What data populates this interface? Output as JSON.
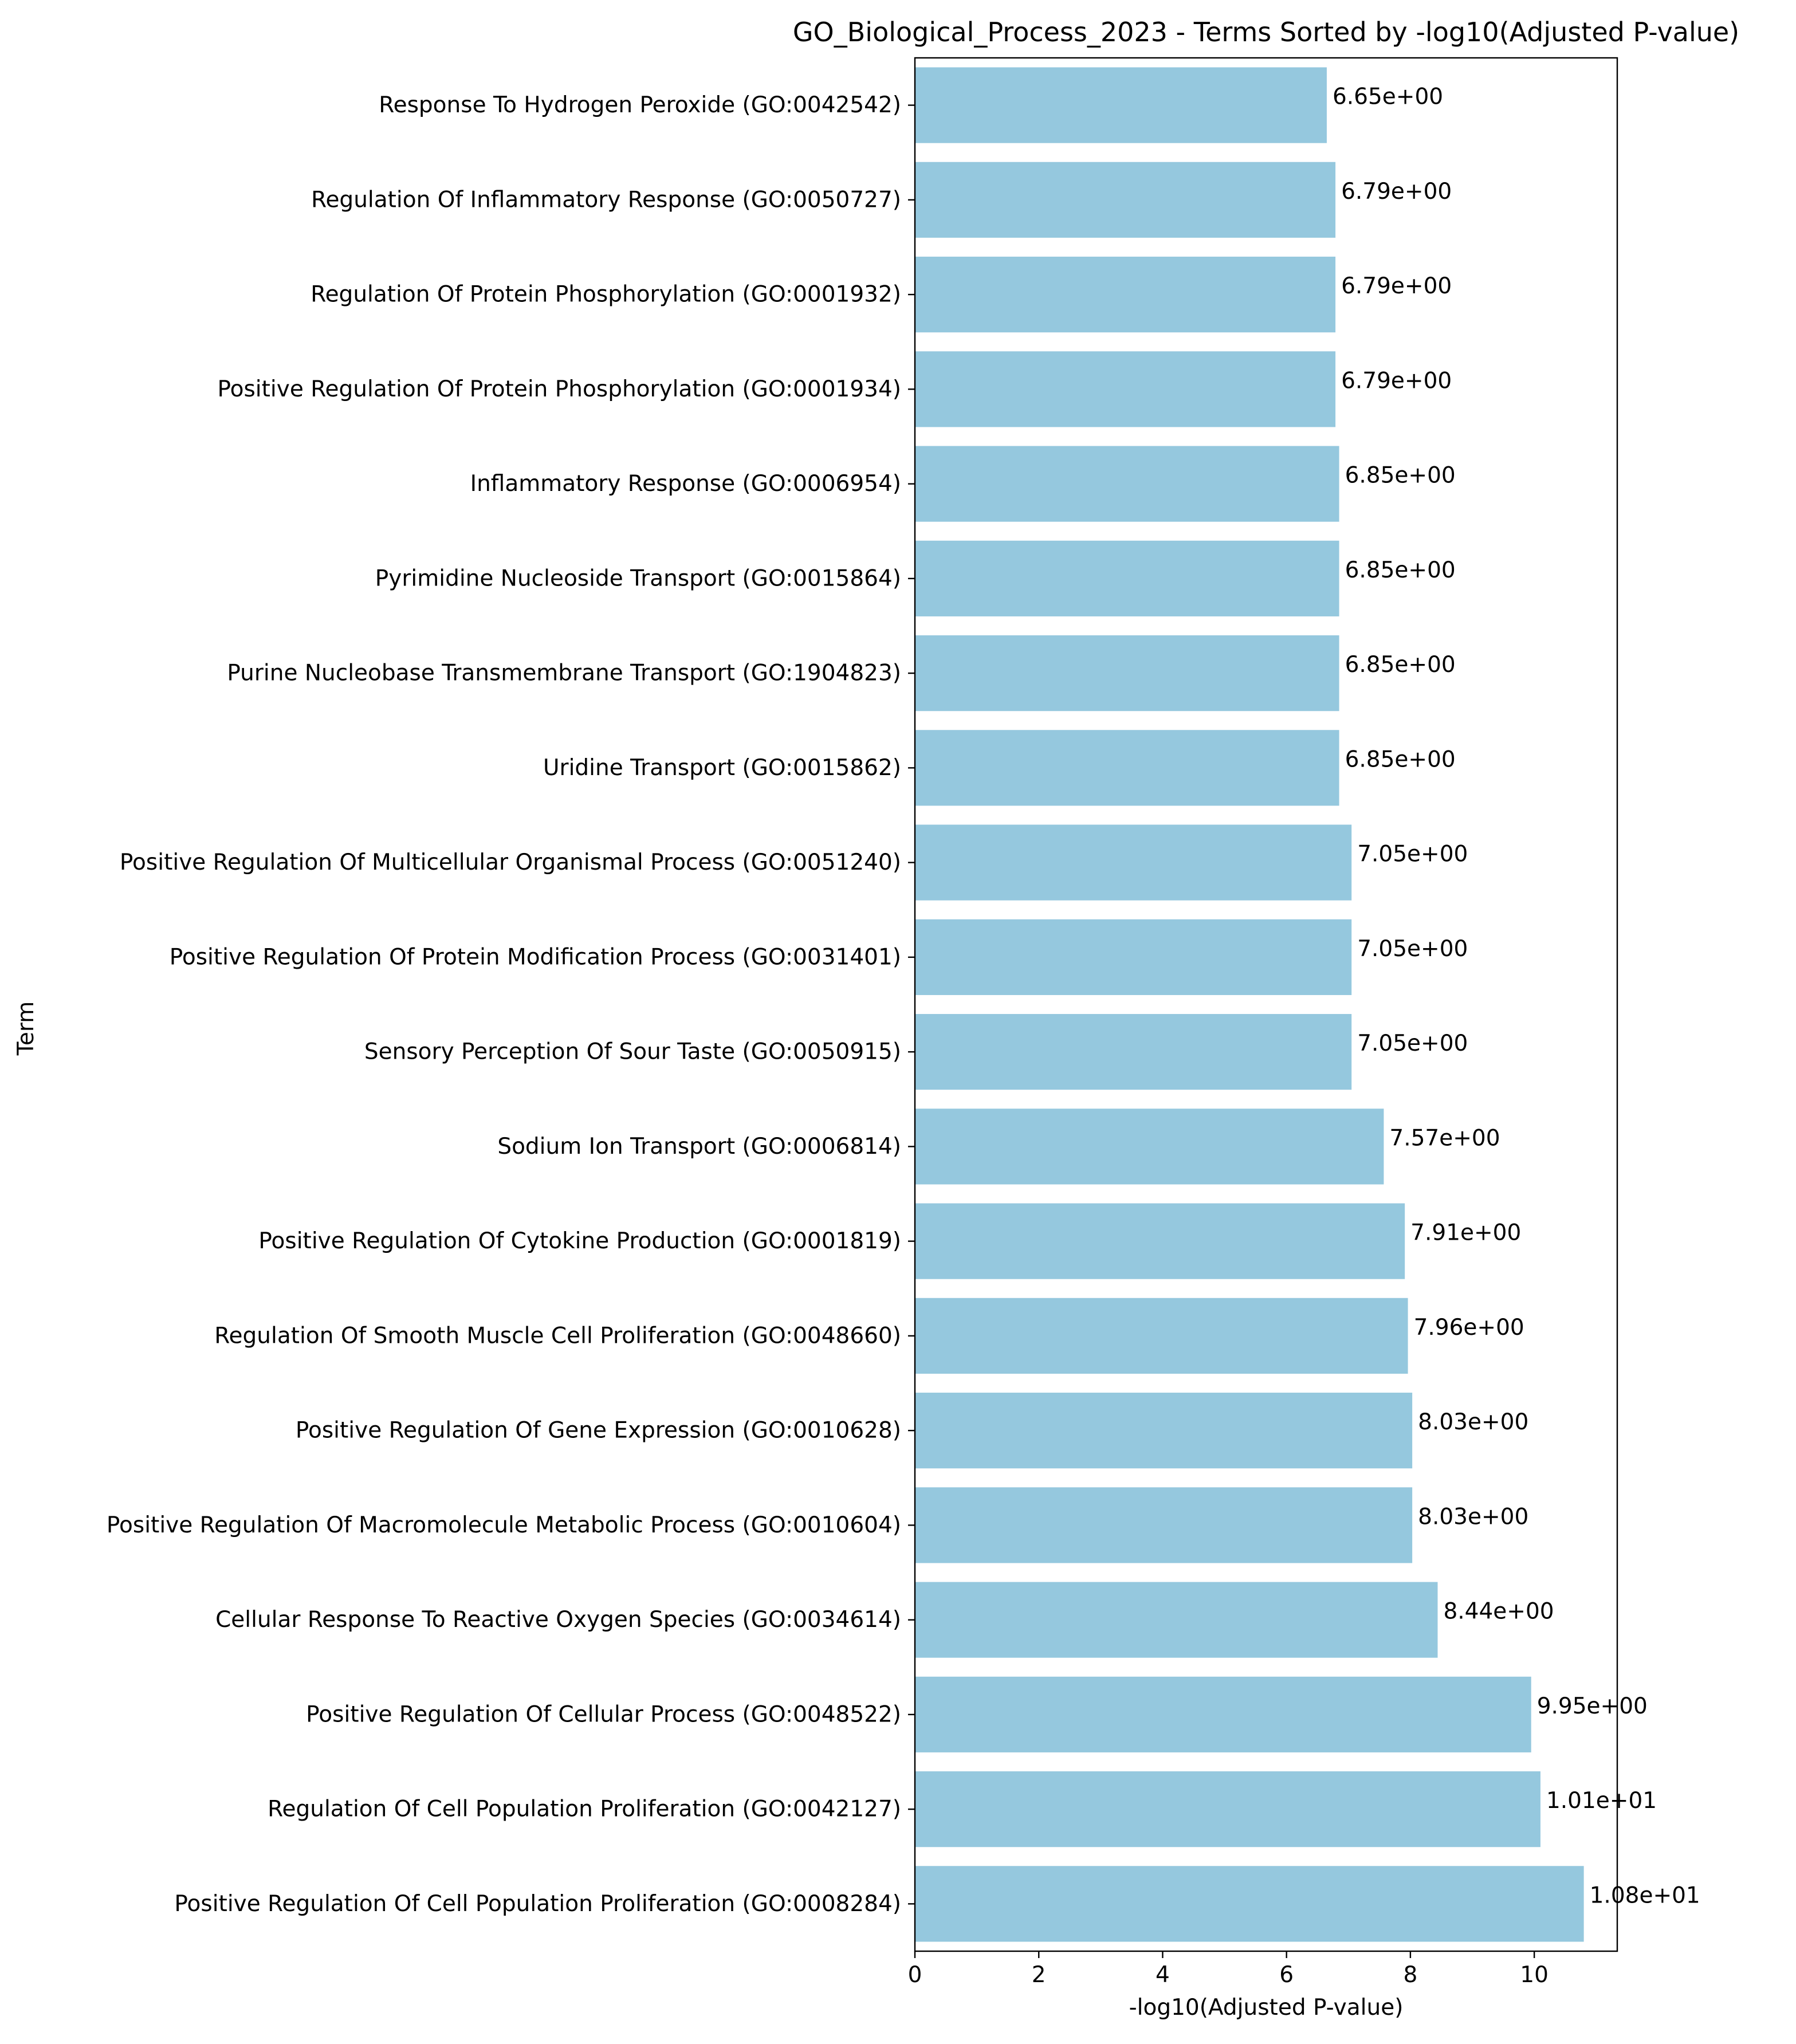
{
  "chart_data": {
    "type": "bar",
    "orientation": "horizontal",
    "title": "GO_Biological_Process_2023 - Terms Sorted by -log10(Adjusted P-value)",
    "xlabel": "-log10(Adjusted P-value)",
    "ylabel": "Term",
    "xlim": [
      0,
      11.34
    ],
    "xticks": [
      0,
      2,
      4,
      6,
      8,
      10
    ],
    "grid": false,
    "bar_color": "#95c8de",
    "categories": [
      "Response To Hydrogen Peroxide (GO:0042542)",
      "Regulation Of Inflammatory Response (GO:0050727)",
      "Regulation Of Protein Phosphorylation (GO:0001932)",
      "Positive Regulation Of Protein Phosphorylation (GO:0001934)",
      "Inflammatory Response (GO:0006954)",
      "Pyrimidine Nucleoside Transport (GO:0015864)",
      "Purine Nucleobase Transmembrane Transport (GO:1904823)",
      "Uridine Transport (GO:0015862)",
      "Positive Regulation Of Multicellular Organismal Process (GO:0051240)",
      "Positive Regulation Of Protein Modification Process (GO:0031401)",
      "Sensory Perception Of Sour Taste (GO:0050915)",
      "Sodium Ion Transport (GO:0006814)",
      "Positive Regulation Of Cytokine Production (GO:0001819)",
      "Regulation Of Smooth Muscle Cell Proliferation (GO:0048660)",
      "Positive Regulation Of Gene Expression (GO:0010628)",
      "Positive Regulation Of Macromolecule Metabolic Process (GO:0010604)",
      "Cellular Response To Reactive Oxygen Species (GO:0034614)",
      "Positive Regulation Of Cellular Process (GO:0048522)",
      "Regulation Of Cell Population Proliferation (GO:0042127)",
      "Positive Regulation Of Cell Population Proliferation (GO:0008284)"
    ],
    "values": [
      6.65,
      6.79,
      6.79,
      6.79,
      6.85,
      6.85,
      6.85,
      6.85,
      7.05,
      7.05,
      7.05,
      7.57,
      7.91,
      7.96,
      8.03,
      8.03,
      8.44,
      9.95,
      10.1,
      10.8
    ],
    "value_labels": [
      "6.65e+00",
      "6.79e+00",
      "6.79e+00",
      "6.79e+00",
      "6.85e+00",
      "6.85e+00",
      "6.85e+00",
      "6.85e+00",
      "7.05e+00",
      "7.05e+00",
      "7.05e+00",
      "7.57e+00",
      "7.91e+00",
      "7.96e+00",
      "8.03e+00",
      "8.03e+00",
      "8.44e+00",
      "9.95e+00",
      "1.01e+01",
      "1.08e+01"
    ]
  }
}
